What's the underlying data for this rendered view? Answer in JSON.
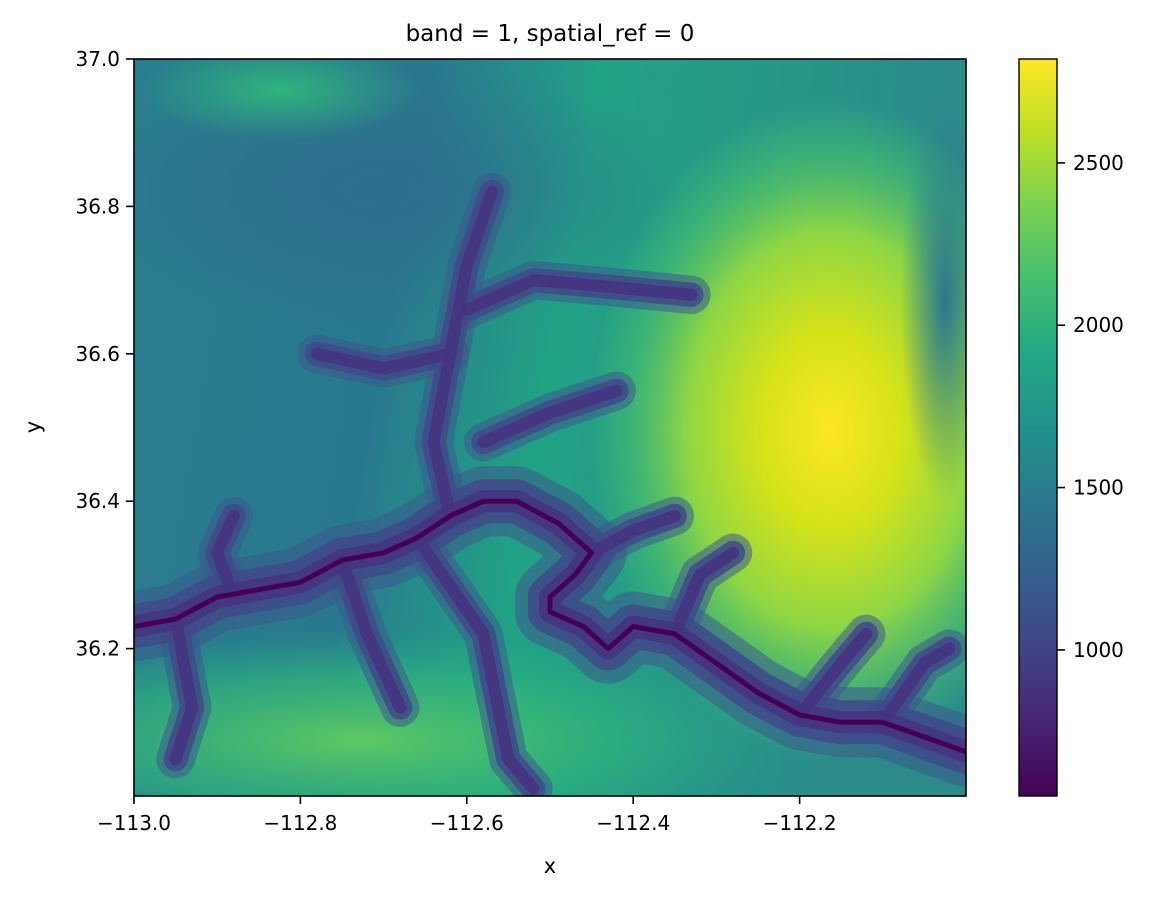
{
  "chart_data": {
    "type": "heatmap",
    "title": "band = 1, spatial_ref = 0",
    "xlabel": "x",
    "ylabel": "y",
    "xlim": [
      -113.0,
      -112.0
    ],
    "ylim": [
      36.0,
      37.0
    ],
    "xticks": [
      -113.0,
      -112.8,
      -112.6,
      -112.4,
      -112.2
    ],
    "xtick_labels": [
      "−113.0",
      "−112.8",
      "−112.6",
      "−112.4",
      "−112.2"
    ],
    "yticks": [
      36.2,
      36.4,
      36.6,
      36.8,
      37.0
    ],
    "ytick_labels": [
      "36.2",
      "36.4",
      "36.6",
      "36.8",
      "37.0"
    ],
    "colormap": "viridis",
    "colorbar": {
      "vmin": 550,
      "vmax": 2820,
      "ticks": [
        1000,
        1500,
        2000,
        2500
      ],
      "tick_labels": [
        "1000",
        "1500",
        "2000",
        "2500"
      ]
    },
    "river_path": [
      [
        -113.0,
        36.23
      ],
      [
        -112.95,
        36.24
      ],
      [
        -112.9,
        36.27
      ],
      [
        -112.85,
        36.28
      ],
      [
        -112.8,
        36.29
      ],
      [
        -112.75,
        36.32
      ],
      [
        -112.7,
        36.33
      ],
      [
        -112.66,
        36.35
      ],
      [
        -112.62,
        36.38
      ],
      [
        -112.58,
        36.4
      ],
      [
        -112.54,
        36.4
      ],
      [
        -112.49,
        36.37
      ],
      [
        -112.45,
        36.33
      ],
      [
        -112.47,
        36.3
      ],
      [
        -112.5,
        36.27
      ],
      [
        -112.5,
        36.25
      ],
      [
        -112.46,
        36.23
      ],
      [
        -112.43,
        36.2
      ],
      [
        -112.4,
        36.23
      ],
      [
        -112.35,
        36.22
      ],
      [
        -112.3,
        36.18
      ],
      [
        -112.25,
        36.14
      ],
      [
        -112.2,
        36.11
      ],
      [
        -112.15,
        36.1
      ],
      [
        -112.1,
        36.1
      ],
      [
        -112.05,
        36.08
      ],
      [
        -112.0,
        36.06
      ]
    ],
    "canyon_arms": [
      [
        [
          -112.62,
          36.38
        ],
        [
          -112.64,
          36.48
        ],
        [
          -112.62,
          36.6
        ],
        [
          -112.6,
          36.72
        ],
        [
          -112.57,
          36.82
        ]
      ],
      [
        [
          -112.62,
          36.6
        ],
        [
          -112.7,
          36.58
        ],
        [
          -112.78,
          36.6
        ]
      ],
      [
        [
          -112.6,
          36.66
        ],
        [
          -112.52,
          36.7
        ],
        [
          -112.42,
          36.69
        ],
        [
          -112.33,
          36.68
        ]
      ],
      [
        [
          -112.58,
          36.48
        ],
        [
          -112.5,
          36.52
        ],
        [
          -112.42,
          36.55
        ]
      ],
      [
        [
          -112.88,
          36.27
        ],
        [
          -112.9,
          36.33
        ],
        [
          -112.88,
          36.38
        ]
      ],
      [
        [
          -112.75,
          36.32
        ],
        [
          -112.72,
          36.22
        ],
        [
          -112.68,
          36.12
        ]
      ],
      [
        [
          -112.66,
          36.35
        ],
        [
          -112.58,
          36.22
        ],
        [
          -112.55,
          36.05
        ],
        [
          -112.52,
          36.01
        ]
      ],
      [
        [
          -112.95,
          36.24
        ],
        [
          -112.93,
          36.12
        ],
        [
          -112.95,
          36.05
        ]
      ],
      [
        [
          -112.35,
          36.22
        ],
        [
          -112.32,
          36.3
        ],
        [
          -112.28,
          36.33
        ]
      ],
      [
        [
          -112.2,
          36.11
        ],
        [
          -112.15,
          36.18
        ],
        [
          -112.12,
          36.22
        ]
      ],
      [
        [
          -112.1,
          36.1
        ],
        [
          -112.05,
          36.18
        ],
        [
          -112.02,
          36.2
        ]
      ],
      [
        [
          -112.45,
          36.33
        ],
        [
          -112.4,
          36.36
        ],
        [
          -112.35,
          36.38
        ]
      ]
    ]
  }
}
